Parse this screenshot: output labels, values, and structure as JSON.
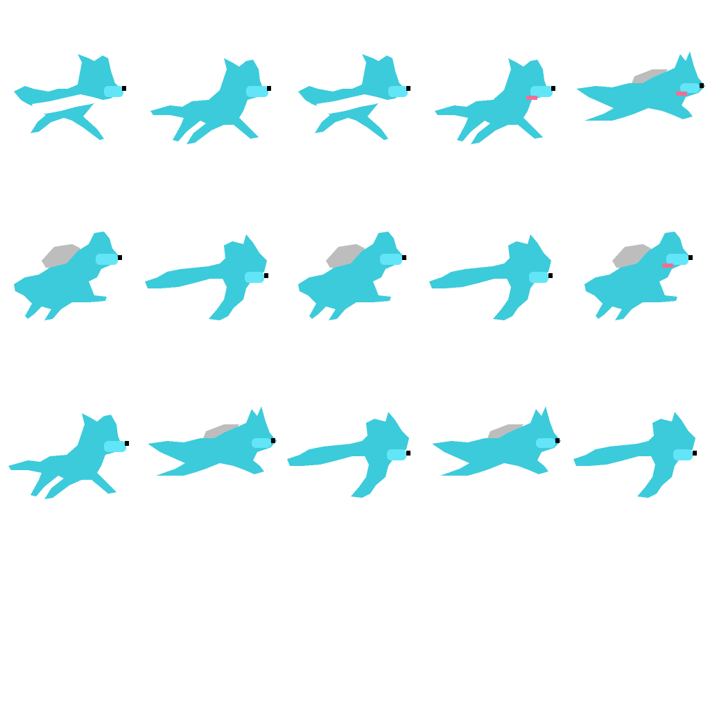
{
  "sprite_sheet": {
    "subject": "wolf",
    "colors": {
      "body": "#3ccbdb",
      "muzzle": "#62e6f7",
      "nose": "#000000",
      "tongue": "#f06e95",
      "mane": "#bdbdbd",
      "highlight": "#ffffff",
      "background": "#ffffff"
    },
    "frames": [
      {
        "row": 0,
        "col": 0,
        "pose": "leap-light",
        "mane": false,
        "tongue": false
      },
      {
        "row": 0,
        "col": 1,
        "pose": "gallop",
        "mane": false,
        "tongue": false
      },
      {
        "row": 0,
        "col": 2,
        "pose": "leap-light",
        "mane": false,
        "tongue": false
      },
      {
        "row": 0,
        "col": 3,
        "pose": "gallop",
        "mane": false,
        "tongue": true
      },
      {
        "row": 0,
        "col": 4,
        "pose": "stretch",
        "mane": true,
        "tongue": true
      },
      {
        "row": 1,
        "col": 0,
        "pose": "crouch",
        "mane": true,
        "tongue": false
      },
      {
        "row": 1,
        "col": 1,
        "pose": "tail-stretch",
        "mane": false,
        "tongue": false
      },
      {
        "row": 1,
        "col": 2,
        "pose": "crouch",
        "mane": true,
        "tongue": false
      },
      {
        "row": 1,
        "col": 3,
        "pose": "tail-stretch",
        "mane": false,
        "tongue": false
      },
      {
        "row": 1,
        "col": 4,
        "pose": "crouch",
        "mane": true,
        "tongue": true
      },
      {
        "row": 2,
        "col": 0,
        "pose": "gallop",
        "mane": false,
        "tongue": false
      },
      {
        "row": 2,
        "col": 1,
        "pose": "stretch",
        "mane": true,
        "tongue": false
      },
      {
        "row": 2,
        "col": 2,
        "pose": "tail-stretch",
        "mane": false,
        "tongue": false
      },
      {
        "row": 2,
        "col": 3,
        "pose": "stretch",
        "mane": true,
        "tongue": false
      },
      {
        "row": 2,
        "col": 4,
        "pose": "tail-stretch",
        "mane": false,
        "tongue": false
      }
    ]
  }
}
